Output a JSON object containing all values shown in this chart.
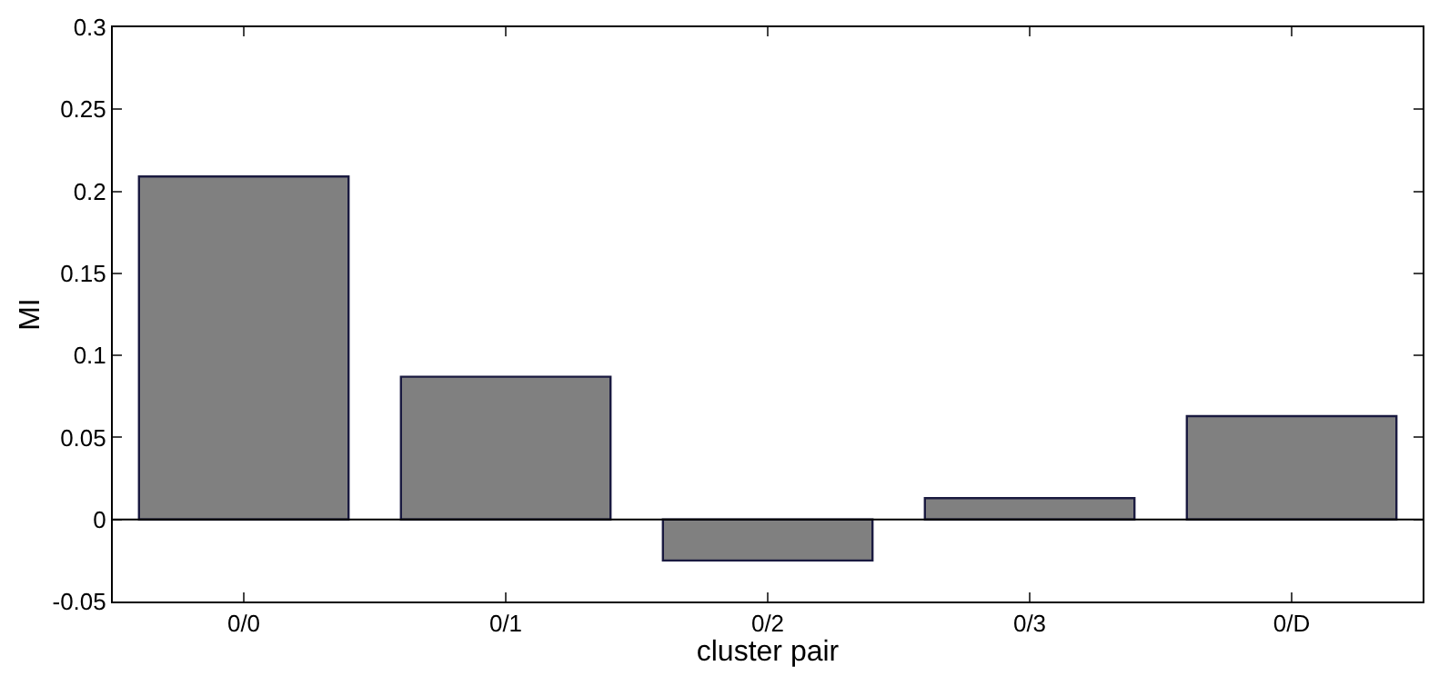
{
  "chart_data": {
    "type": "bar",
    "xlabel": "cluster pair",
    "ylabel": "MI",
    "categories": [
      "0/0",
      "0/1",
      "0/2",
      "0/3",
      "0/D"
    ],
    "values": [
      0.209,
      0.087,
      -0.025,
      0.013,
      0.063
    ],
    "color": "#808080",
    "ylim": [
      -0.05,
      0.3
    ],
    "yticks": [
      -0.05,
      0,
      0.05,
      0.1,
      0.15,
      0.2,
      0.25,
      0.3
    ],
    "ref_lines": [
      {
        "axis": "y",
        "value": 0,
        "color": "#000000"
      }
    ],
    "legend": false
  }
}
